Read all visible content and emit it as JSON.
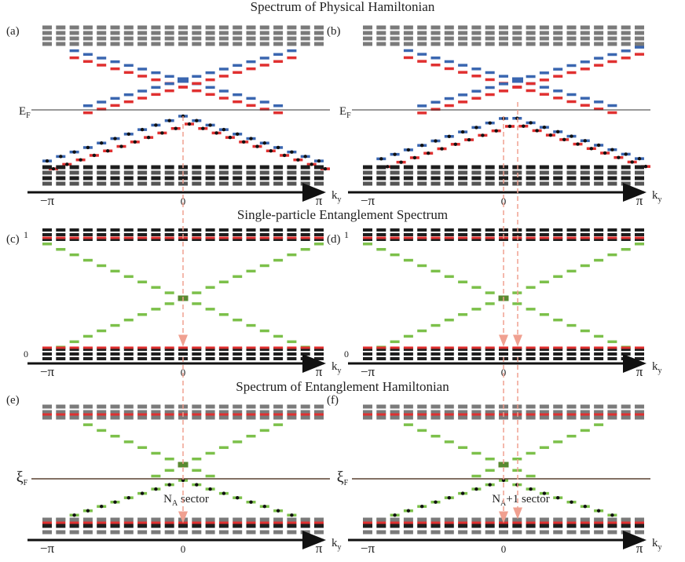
{
  "titles": [
    "Spectrum of Physical Hamiltonian",
    "Single-particle Entanglement Spectrum",
    "Spectrum of Entanglement Hamiltonian"
  ],
  "panels": [
    {
      "label": "(a)",
      "fermi": {
        "symbol": "E",
        "sub": "F"
      },
      "ticks": [
        "−π",
        "0",
        "π"
      ],
      "axis": {
        "symbol": "k",
        "sub": "y"
      }
    },
    {
      "label": "(b)",
      "fermi": {
        "symbol": "E",
        "sub": "F"
      },
      "ticks": [
        "−π",
        "0",
        "π"
      ],
      "axis": {
        "symbol": "k",
        "sub": "y"
      }
    },
    {
      "label": "(c)",
      "yticks": [
        "1",
        "0"
      ],
      "ticks": [
        "−π",
        "0",
        "π"
      ],
      "axis": {
        "symbol": "k",
        "sub": "y"
      }
    },
    {
      "label": "(d)",
      "yticks": [
        "1",
        "0"
      ],
      "ticks": [
        "−π",
        "0",
        "π"
      ],
      "axis": {
        "symbol": "k",
        "sub": "y"
      }
    },
    {
      "label": "(e)",
      "fermi": {
        "symbol": "ξ",
        "sub": "F"
      },
      "sector": {
        "symbol": "N",
        "sub": "A",
        "text": " sector"
      },
      "ticks": [
        "−π",
        "0",
        "π"
      ],
      "axis": {
        "symbol": "k",
        "sub": "y"
      }
    },
    {
      "label": "(f)",
      "fermi": {
        "symbol": "ξ",
        "sub": "F"
      },
      "sector": {
        "symbol": "N",
        "sub": "A",
        "text": "+1 sector"
      },
      "ticks": [
        "−π",
        "0",
        "π"
      ],
      "axis": {
        "symbol": "k",
        "sub": "y"
      }
    }
  ]
}
